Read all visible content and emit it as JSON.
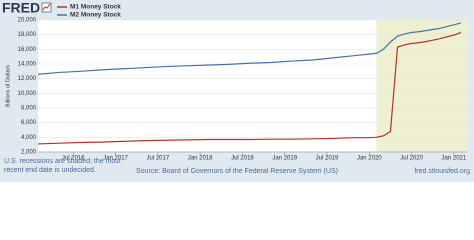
{
  "chart_data": {
    "type": "line",
    "logo": "FRED",
    "y_label": "Billions of Dollars",
    "x": [
      "2016-02",
      "2016-05",
      "2016-08",
      "2016-11",
      "2017-02",
      "2017-05",
      "2017-08",
      "2017-11",
      "2018-02",
      "2018-05",
      "2018-08",
      "2018-11",
      "2019-02",
      "2019-05",
      "2019-08",
      "2019-11",
      "2020-01",
      "2020-02",
      "2020-03",
      "2020-04",
      "2020-05",
      "2020-06",
      "2020-07",
      "2020-08",
      "2020-09",
      "2020-10",
      "2020-11",
      "2020-12",
      "2021-01",
      "2021-02"
    ],
    "series": [
      {
        "name": "M1 Money Stock",
        "color": "#b2332e",
        "values": [
          3100,
          3200,
          3300,
          3350,
          3450,
          3550,
          3600,
          3650,
          3700,
          3700,
          3700,
          3750,
          3750,
          3800,
          3850,
          3950,
          3950,
          4000,
          4200,
          4800,
          16300,
          16600,
          16800,
          16900,
          17050,
          17250,
          17450,
          17700,
          17950,
          18300
        ]
      },
      {
        "name": "M2 Money Stock",
        "color": "#4572a7",
        "values": [
          12600,
          12850,
          13000,
          13200,
          13350,
          13500,
          13650,
          13750,
          13850,
          13950,
          14100,
          14200,
          14400,
          14550,
          14850,
          15150,
          15350,
          15450,
          16000,
          17000,
          17800,
          18100,
          18300,
          18400,
          18550,
          18700,
          18850,
          19100,
          19350,
          19600
        ]
      }
    ],
    "xlim": [
      "2016-02",
      "2021-03"
    ],
    "xticks": [
      {
        "value": "2016-07",
        "label": "Jul 2016"
      },
      {
        "value": "2017-01",
        "label": "Jan 2017"
      },
      {
        "value": "2017-07",
        "label": "Jul 2017"
      },
      {
        "value": "2018-01",
        "label": "Jan 2018"
      },
      {
        "value": "2018-07",
        "label": "Jul 2018"
      },
      {
        "value": "2019-01",
        "label": "Jan 2019"
      },
      {
        "value": "2019-07",
        "label": "Jul 2019"
      },
      {
        "value": "2020-01",
        "label": "Jan 2020"
      },
      {
        "value": "2020-07",
        "label": "Jul 2020"
      },
      {
        "value": "2021-01",
        "label": "Jan 2021"
      }
    ],
    "ylim": [
      2000,
      20000
    ],
    "yticks": [
      {
        "value": 2000,
        "label": "2,000"
      },
      {
        "value": 4000,
        "label": "4,000"
      },
      {
        "value": 6000,
        "label": "6,000"
      },
      {
        "value": 8000,
        "label": "8,000"
      },
      {
        "value": 10000,
        "label": "10,000"
      },
      {
        "value": 12000,
        "label": "12,000"
      },
      {
        "value": 14000,
        "label": "14,000"
      },
      {
        "value": 16000,
        "label": "16,000"
      },
      {
        "value": 18000,
        "label": "18,000"
      },
      {
        "value": 20000,
        "label": "20,000"
      }
    ],
    "grid": true,
    "recession": [
      "2020-02",
      "2021-03"
    ],
    "recession_color": "#efefd2",
    "note": "U.S. recessions are shaded; the most recent end date is undecided.",
    "source": "Source: Board of Governors of the Federal Reserve System (US)",
    "url": "fred.stlouisfed.org"
  }
}
